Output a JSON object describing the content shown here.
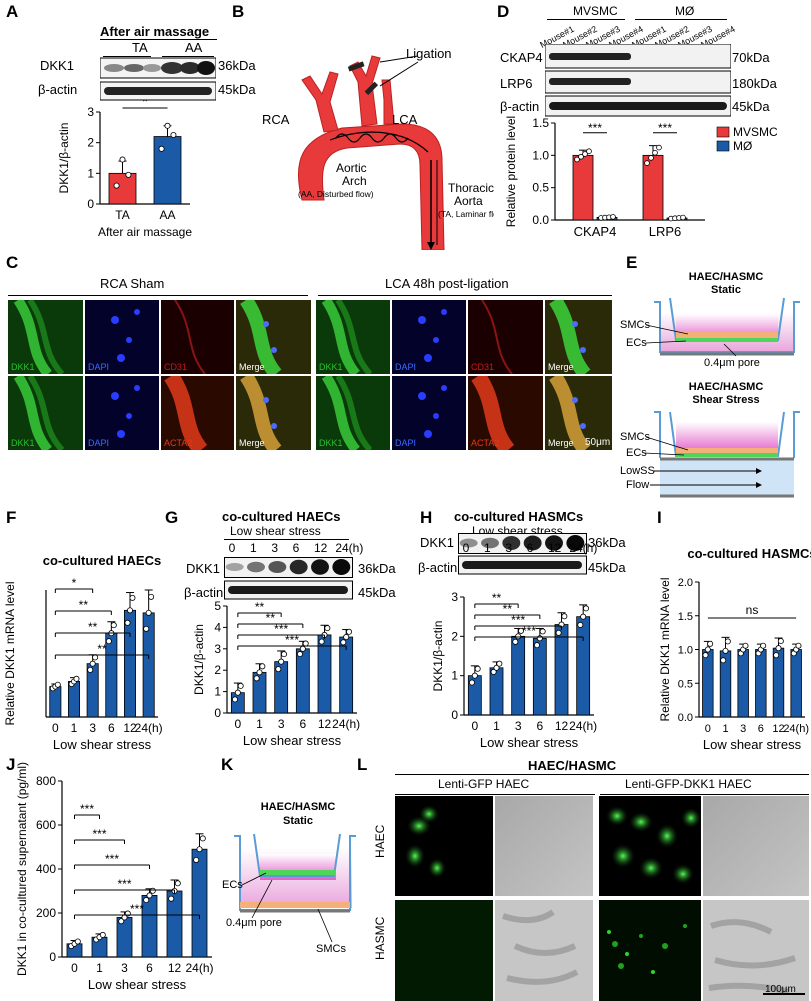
{
  "panel_labels": {
    "A": "A",
    "B": "B",
    "C": "C",
    "D": "D",
    "E": "E",
    "F": "F",
    "G": "G",
    "H": "H",
    "I": "I",
    "J": "J",
    "K": "K",
    "L": "L"
  },
  "colors": {
    "red": "#e8393b",
    "blue": "#1b5aa6",
    "green": "#27c22c",
    "dapi": "#2330d8",
    "cd31": "#c11c1c",
    "acta2": "#e23a1a"
  },
  "panelA": {
    "title": "After air massage",
    "groups": [
      "TA",
      "AA"
    ],
    "blots": [
      {
        "name": "DKK1",
        "kda": "36kDa"
      },
      {
        "name": "β-actin",
        "kda": "45kDa"
      }
    ],
    "ylabel": "DKK1/β-actin",
    "xlabel": "After air massage",
    "sig": "*"
  },
  "panelB": {
    "ligation": "Ligation",
    "rca": "RCA",
    "lca": "LCA",
    "arch": "Aortic",
    "arch2": "Arch",
    "arch_note": "(AA, Disturbed flow)",
    "thoracic": "Thoracic",
    "thoracic2": "Aorta",
    "thoracic_note": "(TA, Laminar flow)"
  },
  "panelC": {
    "left_title": "RCA Sham",
    "right_title": "LCA  48h post-ligation",
    "row1": [
      "DKK1",
      "DAPI",
      "CD31",
      "Merge",
      "DKK1",
      "DAPI",
      "CD31",
      "Merge"
    ],
    "row2": [
      "DKK1",
      "DAPI",
      "ACTA2",
      "Merge",
      "DKK1",
      "DAPI",
      "ACTA2",
      "Merge"
    ],
    "scale": "50μm"
  },
  "panelD": {
    "groups": [
      "MVSMC",
      "MØ"
    ],
    "lanes": [
      "Mouse#1",
      "Mouse#2",
      "Mouse#3",
      "Mouse#4",
      "Mouse#1",
      "Mouse#2",
      "Mouse#3",
      "Mouse#4"
    ],
    "blots": [
      {
        "name": "CKAP4",
        "kda": "70kDa"
      },
      {
        "name": "LRP6",
        "kda": "180kDa"
      },
      {
        "name": "β-actin",
        "kda": "45kDa"
      }
    ],
    "ylabel": "Relative protein level",
    "legend": [
      "MVSMC",
      "MØ"
    ],
    "sig": "***"
  },
  "panelE": {
    "title1": "HAEC/HASMC",
    "title2": "Static",
    "title3": "HAEC/HASMC",
    "title4": "Shear Stress",
    "smcs": "SMCs",
    "ecs": "ECs",
    "pore": "0.4μm pore",
    "lowss": "LowSS",
    "flow": "Flow"
  },
  "panelG": {
    "title": "co-cultured HAECs",
    "sub": "Low shear stress",
    "blots": [
      {
        "name": "DKK1",
        "kda": "36kDa"
      },
      {
        "name": "β-actin",
        "kda": "45kDa"
      }
    ],
    "ylabel": "DKK1/β-actin"
  },
  "panelH": {
    "title": "co-cultured HASMCs",
    "sub": "Low shear stress",
    "blots": [
      {
        "name": "DKK1",
        "kda": "36kDa"
      },
      {
        "name": "β-actin",
        "kda": "45kDa"
      }
    ],
    "ylabel": "DKK1/β-actin"
  },
  "panelK": {
    "title1": "HAEC/HASMC",
    "title2": "Static",
    "ecs": "ECs",
    "pore": "0.4μm pore",
    "smcs": "SMCs"
  },
  "panelL": {
    "title": "HAEC/HASMC",
    "col1": "Lenti-GFP HAEC",
    "col2": "Lenti-GFP-DKK1 HAEC",
    "row1": "HAEC",
    "row2": "HASMC",
    "scale": "100μm"
  },
  "time_ticks": [
    "0",
    "1",
    "3",
    "6",
    "12",
    "24(h)"
  ],
  "chart_data": [
    {
      "id": "A",
      "type": "bar",
      "categories": [
        "TA",
        "AA"
      ],
      "values": [
        1.0,
        2.2
      ],
      "errors": [
        0.4,
        0.35
      ],
      "points": [
        [
          0.6,
          1.45,
          0.95
        ],
        [
          1.8,
          2.55,
          2.25
        ]
      ],
      "ylim": [
        0,
        3
      ],
      "yticks": [
        0,
        1,
        2,
        3
      ],
      "ylabel": "DKK1/β-actin",
      "xlabel": "After air massage",
      "colors": [
        "#e8393b",
        "#1b5aa6"
      ]
    },
    {
      "id": "D",
      "type": "bar",
      "categories": [
        "CKAP4",
        "LRP6"
      ],
      "series": [
        {
          "name": "MVSMC",
          "values": [
            1.0,
            1.0
          ],
          "errors": [
            0.08,
            0.15
          ]
        },
        {
          "name": "MØ",
          "values": [
            0.04,
            0.03
          ],
          "errors": [
            0.01,
            0.01
          ]
        }
      ],
      "ylim": [
        0,
        1.5
      ],
      "yticks": [
        0.0,
        0.5,
        1.0,
        1.5
      ],
      "ylabel": "Relative protein level"
    },
    {
      "id": "F",
      "type": "bar",
      "title": "co-cultured HAECs",
      "categories": [
        "0",
        "1",
        "3",
        "6",
        "12",
        "24(h)"
      ],
      "values": [
        1.2,
        1.4,
        2.1,
        3.3,
        4.2,
        4.1
      ],
      "errors": [
        0.1,
        0.15,
        0.35,
        0.45,
        0.7,
        0.9
      ],
      "ylim": [
        0,
        5
      ],
      "ylabel": "Relative DKK1 mRNA level",
      "xlabel": "Low shear stress",
      "sig": [
        "*",
        "**",
        "**",
        "**"
      ]
    },
    {
      "id": "G",
      "type": "bar",
      "categories": [
        "0",
        "1",
        "3",
        "6",
        "12",
        "24(h)"
      ],
      "values": [
        0.95,
        1.9,
        2.4,
        3.0,
        3.65,
        3.55
      ],
      "errors": [
        0.45,
        0.4,
        0.5,
        0.35,
        0.45,
        0.35
      ],
      "ylim": [
        0,
        5
      ],
      "yticks": [
        0,
        1,
        2,
        3,
        4,
        5
      ],
      "ylabel": "DKK1/β-actin",
      "xlabel": "Low shear stress",
      "sig": [
        "**",
        "**",
        "***",
        "***"
      ]
    },
    {
      "id": "H",
      "type": "bar",
      "categories": [
        "0",
        "1",
        "3",
        "6",
        "12",
        "24(h)"
      ],
      "values": [
        1.0,
        1.2,
        2.0,
        1.95,
        2.3,
        2.5
      ],
      "errors": [
        0.25,
        0.15,
        0.2,
        0.25,
        0.3,
        0.3
      ],
      "ylim": [
        0,
        3
      ],
      "yticks": [
        0,
        1,
        2,
        3
      ],
      "ylabel": "DKK1/β-actin",
      "xlabel": "Low shear stress",
      "sig": [
        "**",
        "**",
        "***",
        "***"
      ]
    },
    {
      "id": "I",
      "type": "bar",
      "title": "co-cultured HASMCs",
      "categories": [
        "0",
        "1",
        "3",
        "6",
        "12",
        "24(h)"
      ],
      "values": [
        1.0,
        0.98,
        1.0,
        1.0,
        1.02,
        1.0
      ],
      "errors": [
        0.12,
        0.2,
        0.08,
        0.08,
        0.15,
        0.08
      ],
      "ylim": [
        0,
        2.0
      ],
      "yticks": [
        0.0,
        0.5,
        1.0,
        1.5,
        2.0
      ],
      "ylabel": "Relative DKK1 mRNA level",
      "xlabel": "Low shear stress",
      "sig": "ns"
    },
    {
      "id": "J",
      "type": "bar",
      "categories": [
        "0",
        "1",
        "3",
        "6",
        "12",
        "24(h)"
      ],
      "values": [
        60,
        90,
        180,
        280,
        300,
        490
      ],
      "errors": [
        15,
        15,
        25,
        30,
        50,
        70
      ],
      "ylim": [
        0,
        800
      ],
      "yticks": [
        0,
        200,
        400,
        600,
        800
      ],
      "ylabel": "DKK1 in co-cultured supernatant (pg/ml)",
      "xlabel": "Low shear stress",
      "sig": [
        "***",
        "***",
        "***",
        "***",
        "***"
      ]
    }
  ]
}
